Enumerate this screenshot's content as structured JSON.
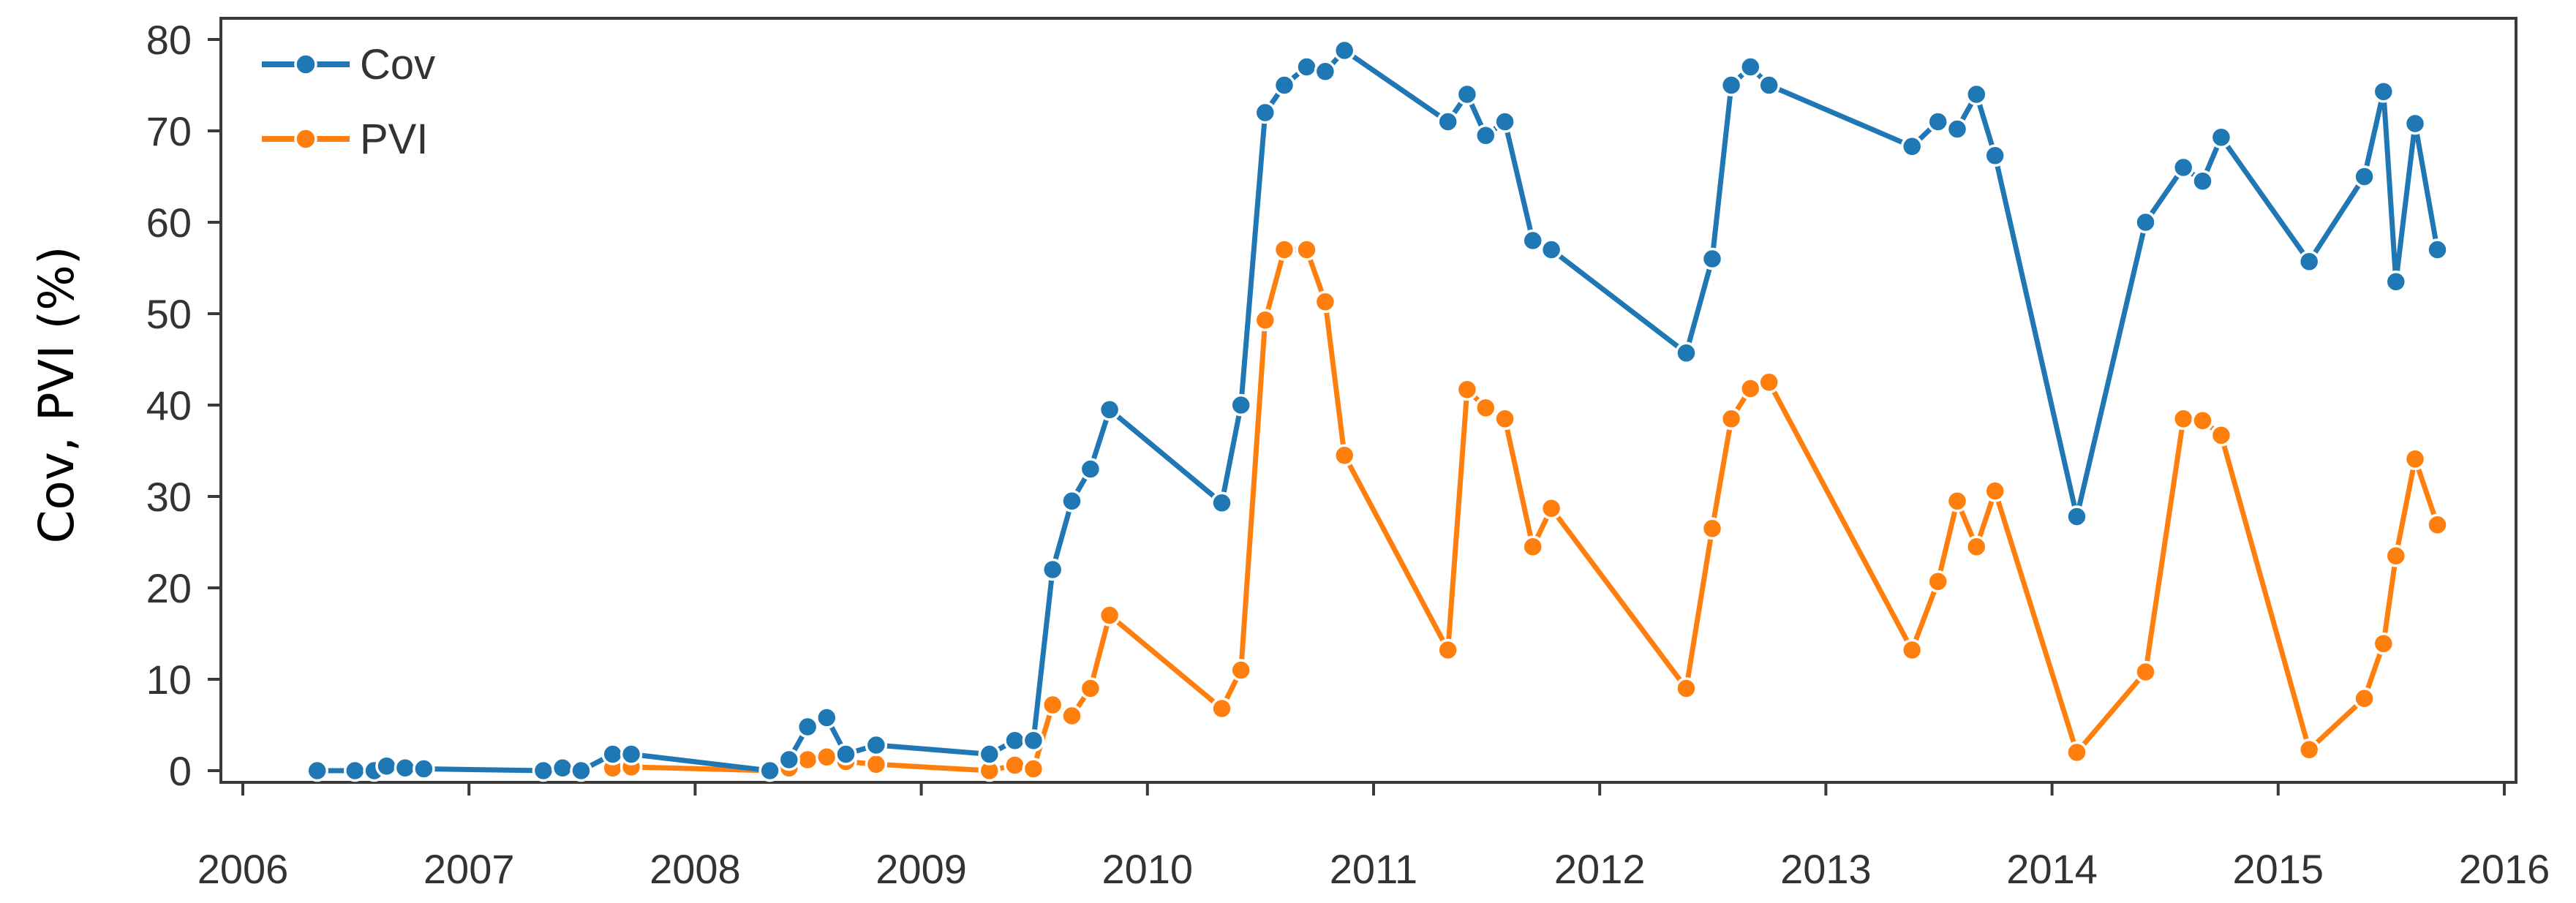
{
  "chart_data": {
    "type": "line",
    "title": "",
    "xlabel": "",
    "ylabel": "Cov, PVI (%)",
    "xlim": [
      2006,
      2016
    ],
    "ylim": [
      0,
      80
    ],
    "x_ticks": [
      "2006",
      "2007",
      "2008",
      "2009",
      "2010",
      "2011",
      "2012",
      "2013",
      "2014",
      "2015",
      "2016"
    ],
    "y_ticks": [
      "0",
      "10",
      "20",
      "30",
      "40",
      "50",
      "60",
      "70",
      "80"
    ],
    "legend_position": "top-left",
    "grid": false,
    "series": [
      {
        "name": "Cov",
        "color": "#1f77b4",
        "x": [
          "2006-05-01",
          "2006-07-01",
          "2006-08-01",
          "2006-08-21",
          "2006-09-20",
          "2006-10-20",
          "2007-05-01",
          "2007-06-01",
          "2007-07-01",
          "2007-08-21",
          "2007-09-20",
          "2008-05-01",
          "2008-06-01",
          "2008-07-01",
          "2008-08-01",
          "2008-09-01",
          "2008-10-20",
          "2009-04-21",
          "2009-06-01",
          "2009-07-01",
          "2009-08-01",
          "2009-09-01",
          "2009-10-01",
          "2009-11-01",
          "2010-05-01",
          "2010-06-01",
          "2010-07-10",
          "2010-08-10",
          "2010-09-15",
          "2010-10-15",
          "2010-11-15",
          "2011-05-01",
          "2011-06-01",
          "2011-07-01",
          "2011-08-01",
          "2011-09-15",
          "2011-10-15",
          "2012-05-20",
          "2012-07-01",
          "2012-08-01",
          "2012-09-01",
          "2012-10-01",
          "2013-05-20",
          "2013-07-01",
          "2013-08-01",
          "2013-09-01",
          "2013-10-01",
          "2014-02-10",
          "2014-06-01",
          "2014-08-01",
          "2014-09-01",
          "2014-10-01",
          "2015-02-20",
          "2015-05-20",
          "2015-06-20",
          "2015-07-10",
          "2015-08-10",
          "2015-09-15"
        ],
        "values": [
          0,
          0,
          0,
          0.5,
          0.3,
          0.2,
          0,
          0.3,
          0,
          1.8,
          1.8,
          0,
          1.2,
          4.8,
          5.8,
          1.8,
          2.8,
          1.8,
          3.3,
          3.3,
          22,
          29.5,
          33,
          39.5,
          29.3,
          40,
          72,
          75,
          77,
          76.5,
          78.8,
          71,
          74,
          69.5,
          71,
          58,
          57,
          45.7,
          56,
          75,
          77,
          75,
          68.3,
          71,
          70.2,
          74,
          67.3,
          27.8,
          60,
          66,
          64.5,
          69.3,
          55.7,
          65,
          74.3,
          53.5,
          70.8,
          57
        ]
      },
      {
        "name": "PVI",
        "color": "#ff7f0e",
        "x": [
          "2007-08-21",
          "2007-09-20",
          "2008-05-01",
          "2008-06-01",
          "2008-07-01",
          "2008-08-01",
          "2008-09-01",
          "2008-10-20",
          "2009-04-21",
          "2009-06-01",
          "2009-07-01",
          "2009-08-01",
          "2009-09-01",
          "2009-10-01",
          "2009-11-01",
          "2010-05-01",
          "2010-06-01",
          "2010-07-10",
          "2010-08-10",
          "2010-09-15",
          "2010-10-15",
          "2010-11-15",
          "2011-05-01",
          "2011-06-01",
          "2011-07-01",
          "2011-08-01",
          "2011-09-15",
          "2011-10-15",
          "2012-05-20",
          "2012-07-01",
          "2012-08-01",
          "2012-09-01",
          "2012-10-01",
          "2013-05-20",
          "2013-07-01",
          "2013-08-01",
          "2013-09-01",
          "2013-10-01",
          "2014-02-10",
          "2014-06-01",
          "2014-08-01",
          "2014-09-01",
          "2014-10-01",
          "2015-02-20",
          "2015-05-20",
          "2015-06-20",
          "2015-07-10",
          "2015-08-10",
          "2015-09-15"
        ],
        "values": [
          0.3,
          0.4,
          0,
          0.3,
          1.2,
          1.5,
          1.0,
          0.7,
          0,
          0.6,
          0.2,
          7.2,
          6.0,
          9.0,
          17.0,
          6.8,
          11.0,
          49.3,
          57,
          57,
          51.3,
          34.5,
          13.2,
          41.7,
          39.7,
          38.5,
          24.5,
          28.7,
          9.0,
          26.5,
          38.5,
          41.8,
          42.5,
          13.2,
          20.7,
          29.5,
          24.5,
          30.6,
          2.0,
          10.8,
          38.5,
          38.3,
          36.7,
          2.3,
          7.9,
          13.9,
          23.5,
          34.1,
          26.9
        ]
      }
    ]
  }
}
